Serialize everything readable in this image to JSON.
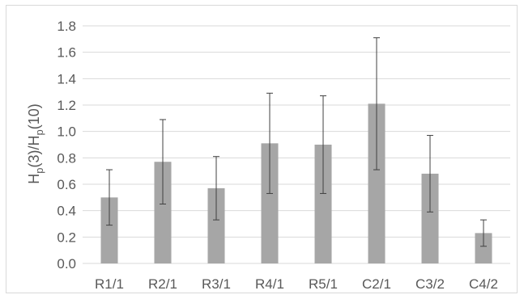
{
  "chart_data": {
    "type": "bar",
    "title": "",
    "xlabel": "",
    "ylabel": {
      "parts": [
        {
          "text": "H",
          "sub": false
        },
        {
          "text": "p",
          "sub": true
        },
        {
          "text": "(3)/H",
          "sub": false
        },
        {
          "text": "p",
          "sub": true
        },
        {
          "text": "(10)",
          "sub": false
        }
      ]
    },
    "categories": [
      "R1/1",
      "R2/1",
      "R3/1",
      "R4/1",
      "R5/1",
      "C2/1",
      "C3/2",
      "C4/2"
    ],
    "values": [
      0.5,
      0.77,
      0.57,
      0.91,
      0.9,
      1.21,
      0.68,
      0.23
    ],
    "error": [
      0.21,
      0.32,
      0.24,
      0.38,
      0.37,
      0.5,
      0.29,
      0.1
    ],
    "ylim": [
      0,
      1.8
    ],
    "yticks": [
      "0.0",
      "0.2",
      "0.4",
      "0.6",
      "0.8",
      "1.0",
      "1.2",
      "1.4",
      "1.6",
      "1.8"
    ],
    "grid": true,
    "legend": "none",
    "colors": {
      "bar": "#a6a6a6",
      "grid": "#d9d9d9",
      "error_bar": "#404040",
      "text": "#595959"
    }
  }
}
